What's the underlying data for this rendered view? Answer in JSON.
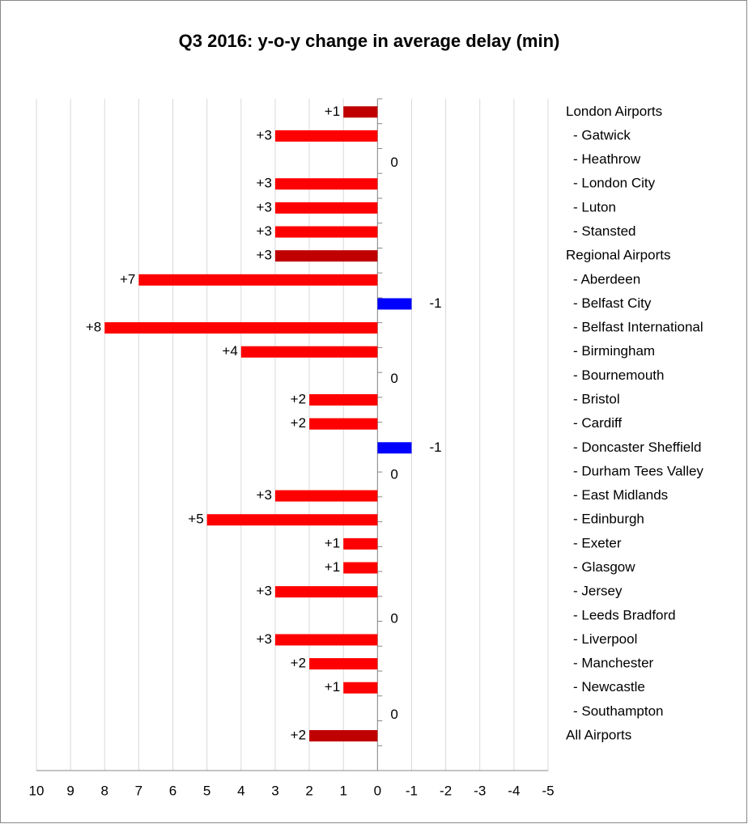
{
  "chart_data": {
    "type": "bar",
    "orientation": "horizontal",
    "title": "Q3 2016: y-o-y change in average delay (min)",
    "categories": [
      "London Airports",
      "- Gatwick",
      "- Heathrow",
      "- London City",
      "- Luton",
      "- Stansted",
      "Regional Airports",
      "- Aberdeen",
      "- Belfast City",
      "- Belfast International",
      "- Birmingham",
      "- Bournemouth",
      "- Bristol",
      "- Cardiff",
      "- Doncaster Sheffield",
      "- Durham Tees Valley",
      "- East Midlands",
      "- Edinburgh",
      "- Exeter",
      "- Glasgow",
      "- Jersey",
      "- Leeds Bradford",
      "- Liverpool",
      "- Manchester",
      "- Newcastle",
      "- Southampton",
      "All Airports"
    ],
    "values": [
      1,
      3,
      0,
      3,
      3,
      3,
      3,
      7,
      -1,
      8,
      4,
      0,
      2,
      2,
      -1,
      0,
      3,
      5,
      1,
      1,
      3,
      0,
      3,
      2,
      1,
      0,
      2
    ],
    "value_labels": [
      "+1",
      "+3",
      "0",
      "+3",
      "+3",
      "+3",
      "+3",
      "+7",
      "-1",
      "+8",
      "+4",
      "0",
      "+2",
      "+2",
      "-1",
      "0",
      "+3",
      "+5",
      "+1",
      "+1",
      "+3",
      "0",
      "+3",
      "+2",
      "+1",
      "0",
      "+2"
    ],
    "colors": [
      "#c00000",
      "#ff0000",
      "#ff0000",
      "#ff0000",
      "#ff0000",
      "#ff0000",
      "#c00000",
      "#ff0000",
      "#0000ff",
      "#ff0000",
      "#ff0000",
      "#ff0000",
      "#ff0000",
      "#ff0000",
      "#0000ff",
      "#ff0000",
      "#ff0000",
      "#ff0000",
      "#ff0000",
      "#ff0000",
      "#ff0000",
      "#ff0000",
      "#ff0000",
      "#ff0000",
      "#ff0000",
      "#ff0000",
      "#c00000"
    ],
    "xlim": [
      10,
      -5
    ],
    "xticks": [
      10,
      9,
      8,
      7,
      6,
      5,
      4,
      3,
      2,
      1,
      0,
      -1,
      -2,
      -3,
      -4,
      -5
    ],
    "grid": true
  }
}
